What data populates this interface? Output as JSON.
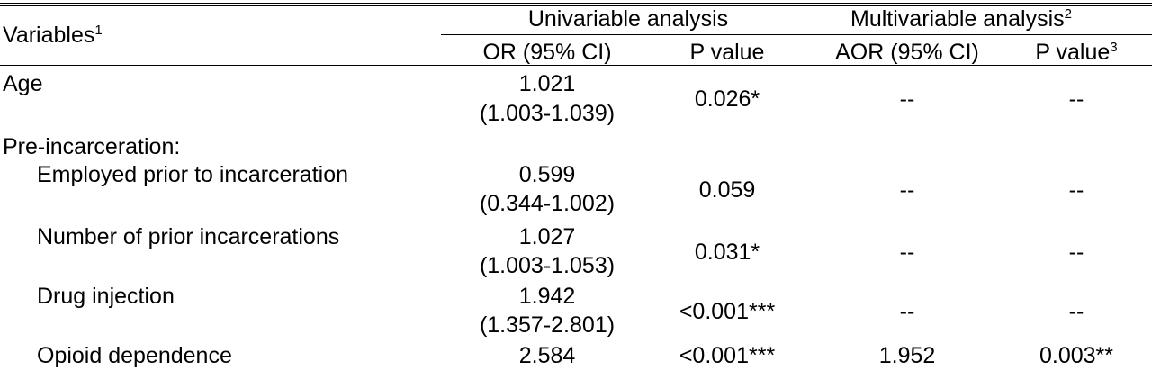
{
  "header": {
    "variables": "Variables",
    "variables_sup": "1",
    "univariable": "Univariable analysis",
    "multivariable": "Multivariable analysis",
    "multivariable_sup": "2",
    "or_ci": "OR (95% CI)",
    "p_value": "P value",
    "aor_ci": "AOR (95% CI)",
    "p_value2": "P value",
    "p_value2_sup": "3"
  },
  "rows": [
    {
      "label": "Age",
      "or": "1.021",
      "ci": "(1.003-1.039)",
      "p": "0.026*",
      "aor": "--",
      "p2": "--"
    },
    {
      "section": "Pre-incarceration:"
    },
    {
      "label": "Employed prior to incarceration",
      "or": "0.599",
      "ci": "(0.344-1.002)",
      "p": "0.059",
      "aor": "--",
      "p2": "--"
    },
    {
      "label": "Number of prior incarcerations",
      "or": "1.027",
      "ci": "(1.003-1.053)",
      "p": "0.031*",
      "aor": "--",
      "p2": "--"
    },
    {
      "label": "Drug injection",
      "or": "1.942",
      "ci": "(1.357-2.801)",
      "p": "<0.001***",
      "aor": "--",
      "p2": "--"
    },
    {
      "label": "Opioid dependence",
      "or": "2.584",
      "p": "<0.001***",
      "aor": "1.952",
      "p2": "0.003**"
    }
  ]
}
